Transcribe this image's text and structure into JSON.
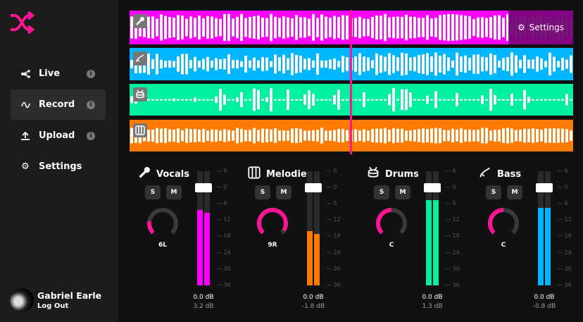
{
  "sidebar": {
    "logo": "shuffle-logo",
    "items": [
      {
        "label": "Live",
        "icon": "share-icon",
        "info": true
      },
      {
        "label": "Record",
        "icon": "wave-icon",
        "info": true,
        "active": true
      },
      {
        "label": "Upload",
        "icon": "upload-icon",
        "info": true
      },
      {
        "label": "Settings",
        "icon": "gear-icon",
        "info": false
      }
    ],
    "user": {
      "name": "Gabriel Earle",
      "logout": "Log Out"
    }
  },
  "tracks": [
    {
      "name": "vocals",
      "color": "#ff00ff",
      "icon": "microphone-icon",
      "settings_label": "Settings"
    },
    {
      "name": "bass",
      "color": "#00b7ff",
      "icon": "guitar-icon"
    },
    {
      "name": "drums",
      "color": "#00f0a0",
      "icon": "drum-icon"
    },
    {
      "name": "melodies",
      "color": "#ff7a00",
      "icon": "piano-icon"
    }
  ],
  "scale": [
    "6",
    "0",
    "6",
    "12",
    "18",
    "24",
    "30",
    "36"
  ],
  "channels": [
    {
      "name": "Vocals",
      "icon": "microphone-icon",
      "color": "#ff00ff",
      "solo": "S",
      "mute": "M",
      "pan": "6L",
      "pan_value": -6,
      "fader_db": "0.0 dB",
      "peak_db": "3.2 dB",
      "meter_db": [
        -8.3,
        -9.2
      ]
    },
    {
      "name": "Melodies",
      "icon": "piano-icon",
      "color": "#ff7a00",
      "solo": "S",
      "mute": "M",
      "pan": "9R",
      "pan_value": 9,
      "fader_db": "0.0 dB",
      "peak_db": "-1.8 dB",
      "meter_db": [
        -16,
        -17
      ]
    },
    {
      "name": "Drums",
      "icon": "drum-icon",
      "color": "#00f0a0",
      "solo": "S",
      "mute": "M",
      "pan": "C",
      "pan_value": 0,
      "fader_db": "0.0 dB",
      "peak_db": "1.3 dB",
      "meter_db": [
        -4.6,
        -4.6
      ]
    },
    {
      "name": "Bass",
      "icon": "guitar-icon",
      "color": "#00b7ff",
      "solo": "S",
      "mute": "M",
      "pan": "C",
      "pan_value": 0,
      "fader_db": "0.0 dB",
      "peak_db": "-0.8 dB",
      "meter_db": [
        -7.5,
        -7.5
      ]
    }
  ],
  "accent": "#ff1493"
}
